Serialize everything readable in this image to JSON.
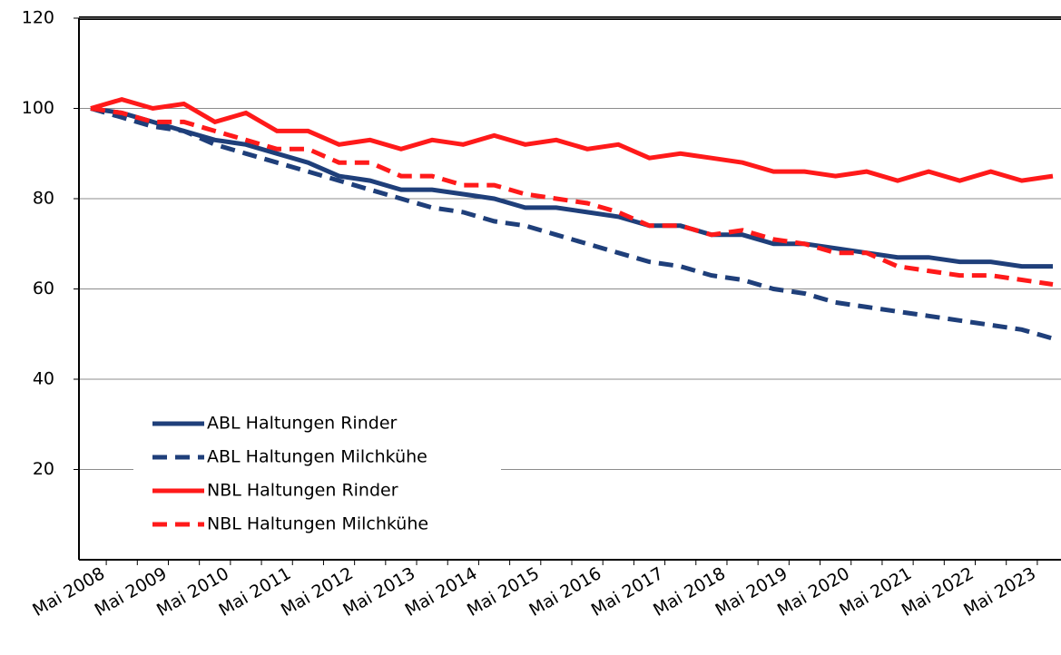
{
  "chart_data": {
    "type": "line",
    "categories": [
      "Mai 2008",
      null,
      "Mai 2009",
      null,
      "Mai 2010",
      null,
      "Mai 2011",
      null,
      "Mai 2012",
      null,
      "Mai 2013",
      null,
      "Mai 2014",
      null,
      "Mai 2015",
      null,
      "Mai 2016",
      null,
      "Mai 2017",
      null,
      "Mai 2018",
      null,
      "Mai 2019",
      null,
      "Mai 2020",
      null,
      "Mai 2021",
      null,
      "Mai 2022",
      null,
      "Mai 2023",
      null
    ],
    "series": [
      {
        "name": "ABL Haltungen Rinder",
        "color": "#1f3f7a",
        "dashed": false,
        "values": [
          100,
          99,
          97,
          95,
          93,
          92,
          90,
          88,
          85,
          84,
          82,
          82,
          81,
          80,
          78,
          78,
          77,
          76,
          74,
          74,
          72,
          72,
          70,
          70,
          69,
          68,
          67,
          67,
          66,
          66,
          65,
          65
        ]
      },
      {
        "name": "ABL Haltungen Milchkühe",
        "color": "#1f3f7a",
        "dashed": true,
        "values": [
          100,
          98,
          96,
          95,
          92,
          90,
          88,
          86,
          84,
          82,
          80,
          78,
          77,
          75,
          74,
          72,
          70,
          68,
          66,
          65,
          63,
          62,
          60,
          59,
          57,
          56,
          55,
          54,
          53,
          52,
          51,
          49
        ]
      },
      {
        "name": "NBL Haltungen Rinder",
        "color": "#ff1a1a",
        "dashed": false,
        "values": [
          100,
          102,
          100,
          101,
          97,
          99,
          95,
          95,
          92,
          93,
          91,
          93,
          92,
          94,
          92,
          93,
          91,
          92,
          89,
          90,
          89,
          88,
          86,
          86,
          85,
          86,
          84,
          86,
          84,
          86,
          84,
          85
        ]
      },
      {
        "name": "NBL Haltungen Milchkühe",
        "color": "#ff1a1a",
        "dashed": true,
        "values": [
          100,
          99,
          97,
          97,
          95,
          93,
          91,
          91,
          88,
          88,
          85,
          85,
          83,
          83,
          81,
          80,
          79,
          77,
          74,
          74,
          72,
          73,
          71,
          70,
          68,
          68,
          65,
          64,
          63,
          63,
          62,
          61
        ]
      }
    ],
    "ylim": [
      0,
      120
    ],
    "yticks": [
      20,
      40,
      60,
      80,
      100,
      120
    ],
    "grid": true
  }
}
